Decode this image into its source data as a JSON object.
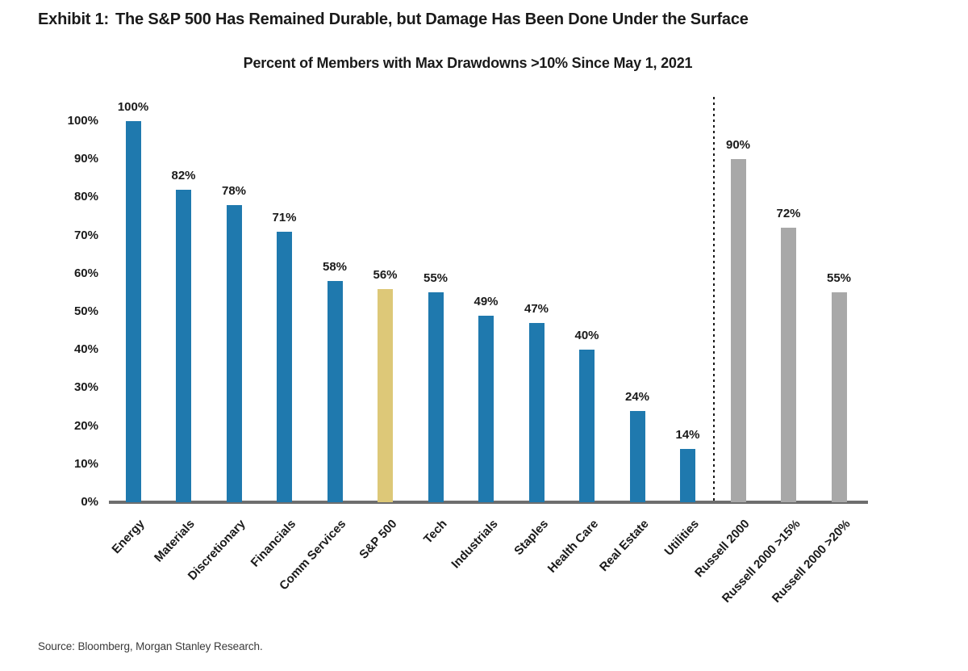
{
  "exhibit": {
    "label": "Exhibit 1:",
    "title": "The S&P 500 Has Remained Durable, but Damage Has Been Done Under the Surface"
  },
  "chart_data": {
    "type": "bar",
    "title": "Percent of Members with Max Drawdowns >10% Since May 1, 2021",
    "xlabel": "",
    "ylabel": "",
    "ylim": [
      0,
      100
    ],
    "grid": false,
    "legend": false,
    "y_ticks": [
      "100%",
      "90%",
      "80%",
      "70%",
      "60%",
      "50%",
      "40%",
      "30%",
      "20%",
      "10%",
      "0%"
    ],
    "categories": [
      "Energy",
      "Materials",
      "Discretionary",
      "Financials",
      "Comm Services",
      "S&P 500",
      "Tech",
      "Industrials",
      "Staples",
      "Health Care",
      "Real Estate",
      "Utilities",
      "Russell 2000",
      "Russell 2000 >15%",
      "Russell 2000 >20%"
    ],
    "values": [
      100,
      82,
      78,
      71,
      58,
      56,
      55,
      49,
      47,
      40,
      24,
      14,
      90,
      72,
      55
    ],
    "bars": [
      {
        "category": "Energy",
        "value": 100,
        "label": "100%",
        "color_key": "sector_blue"
      },
      {
        "category": "Materials",
        "value": 82,
        "label": "82%",
        "color_key": "sector_blue"
      },
      {
        "category": "Discretionary",
        "value": 78,
        "label": "78%",
        "color_key": "sector_blue"
      },
      {
        "category": "Financials",
        "value": 71,
        "label": "71%",
        "color_key": "sector_blue"
      },
      {
        "category": "Comm Services",
        "value": 58,
        "label": "58%",
        "color_key": "sector_blue"
      },
      {
        "category": "S&P 500",
        "value": 56,
        "label": "56%",
        "color_key": "sp500_gold"
      },
      {
        "category": "Tech",
        "value": 55,
        "label": "55%",
        "color_key": "sector_blue"
      },
      {
        "category": "Industrials",
        "value": 49,
        "label": "49%",
        "color_key": "sector_blue"
      },
      {
        "category": "Staples",
        "value": 47,
        "label": "47%",
        "color_key": "sector_blue"
      },
      {
        "category": "Health Care",
        "value": 40,
        "label": "40%",
        "color_key": "sector_blue"
      },
      {
        "category": "Real Estate",
        "value": 24,
        "label": "24%",
        "color_key": "sector_blue"
      },
      {
        "category": "Utilities",
        "value": 14,
        "label": "14%",
        "color_key": "sector_blue"
      },
      {
        "category": "Russell 2000",
        "value": 90,
        "label": "90%",
        "color_key": "russell_gray"
      },
      {
        "category": "Russell 2000 >15%",
        "value": 72,
        "label": "72%",
        "color_key": "russell_gray"
      },
      {
        "category": "Russell 2000 >20%",
        "value": 55,
        "label": "55%",
        "color_key": "russell_gray"
      }
    ],
    "separator": {
      "after_category": "Utilities",
      "style": "vertical-dotted-line"
    },
    "colors": {
      "sector_blue": "#1f79ae",
      "sp500_gold": "#ddc878",
      "russell_gray": "#a8a8a8",
      "axis_line": "#6e6e6e",
      "separator": "#1a1a1a",
      "text": "#1a1a1a"
    }
  },
  "source": "Source: Bloomberg, Morgan Stanley Research."
}
